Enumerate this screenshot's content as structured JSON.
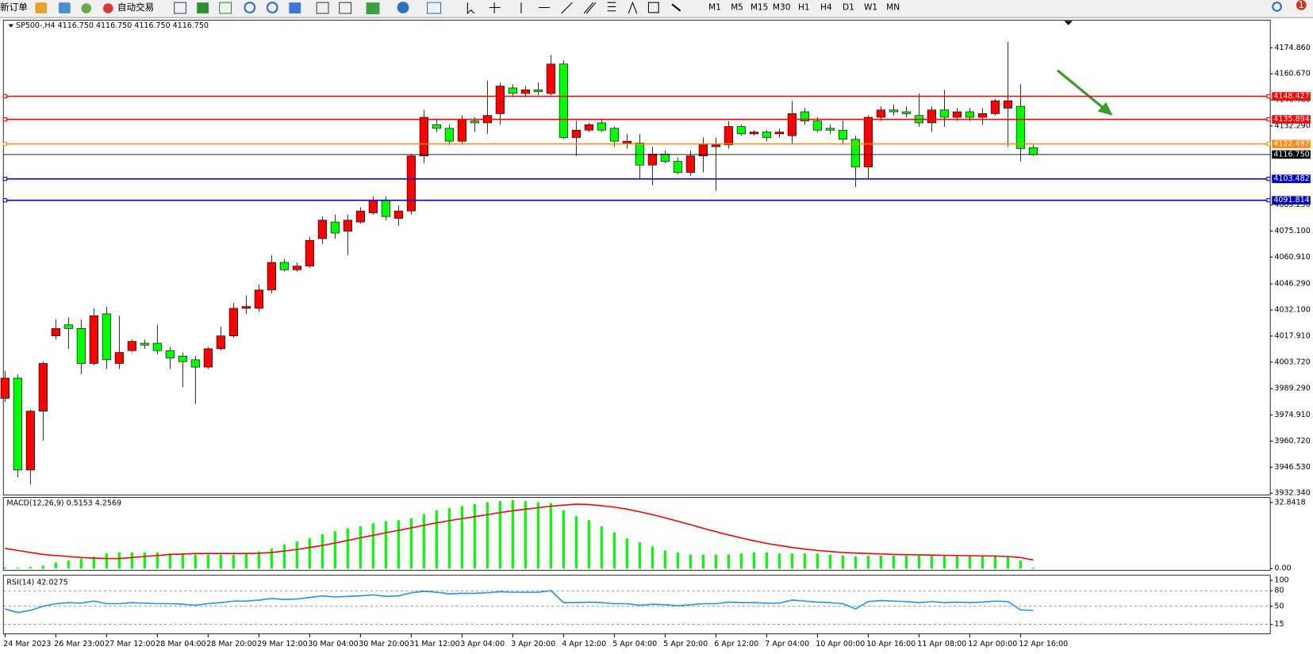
{
  "toolbar": {
    "new_order": "新订单",
    "auto_trade": "自动交易",
    "timeframes": [
      "M1",
      "M5",
      "M15",
      "M30",
      "H1",
      "H4",
      "D1",
      "W1",
      "MN"
    ],
    "notifications": "1"
  },
  "chart_data": [
    {
      "type": "candlestick",
      "title": "SP500-,H4 4116.750 4116.750 4116.750 4116.750",
      "up_color": "#ff0000",
      "down_color": "#00ff00",
      "categories": [
        "24 Mar 2023",
        null,
        null,
        null,
        "26 Mar 23:00",
        null,
        null,
        null,
        "27 Mar 12:00",
        null,
        null,
        null,
        "28 Mar 04:00",
        null,
        null,
        null,
        "28 Mar 20:00",
        null,
        null,
        null,
        "29 Mar 12:00",
        null,
        null,
        null,
        "30 Mar 04:00",
        null,
        null,
        null,
        "30 Mar 20:00",
        null,
        null,
        null,
        "31 Mar 12:00",
        null,
        null,
        null,
        "3 Apr 04:00",
        null,
        null,
        null,
        "3 Apr 20:00",
        null,
        null,
        null,
        "4 Apr 12:00",
        null,
        null,
        null,
        "5 Apr 04:00",
        null,
        null,
        null,
        "5 Apr 20:00",
        null,
        null,
        null,
        "6 Apr 12:00",
        null,
        null,
        null,
        "7 Apr 04:00",
        null,
        null,
        null,
        "10 Apr 00:00",
        null,
        null,
        null,
        "10 Apr 16:00",
        null,
        null,
        null,
        "11 Apr 08:00",
        null,
        null,
        null,
        "12 Apr 00:00",
        null,
        null,
        null,
        "12 Apr 16:00",
        null
      ],
      "open": [
        3984,
        3995,
        3945,
        3977,
        4018,
        4024,
        4022,
        4003,
        4030,
        4003,
        4010,
        4014,
        4014,
        4010,
        4007,
        4005,
        4001,
        4011,
        4018,
        4033,
        4033,
        4043,
        4058,
        4054,
        4056,
        4071,
        4080,
        4075,
        4080,
        4085,
        4092,
        4082,
        4086,
        4116,
        4133,
        4131,
        4124,
        4135,
        4134,
        4139,
        4153,
        4150,
        4152,
        4150,
        4166,
        4126,
        4130,
        4134,
        4131,
        4123,
        4123,
        4111,
        4117,
        4113,
        4107,
        4116,
        4121,
        4122,
        4132,
        4128,
        4129,
        4128,
        4127,
        4140,
        4135,
        4131,
        4130,
        4125,
        4110,
        4137,
        4141,
        4140,
        4138,
        4134,
        4141,
        4137,
        4140,
        4137,
        4139,
        4142,
        4143,
        4120.5
      ],
      "high": [
        3999,
        3997,
        3978,
        4004,
        4027,
        4028,
        4027,
        4033,
        4034,
        4029,
        4016,
        4016,
        4024,
        4012,
        4009,
        4007,
        4012,
        4023,
        4036,
        4040,
        4046,
        4062,
        4060,
        4058,
        4072,
        4083,
        4084,
        4084,
        4088,
        4094,
        4094,
        4089,
        4117,
        4141,
        4136,
        4133,
        4138,
        4137,
        4157,
        4156,
        4155,
        4154,
        4156,
        4171,
        4168,
        4135,
        4134,
        4136,
        4132,
        4128,
        4128,
        4121,
        4119,
        4115,
        4119,
        4126,
        4126,
        4135,
        4133,
        4130,
        4130,
        4131,
        4146,
        4142,
        4137,
        4133,
        4135,
        4127,
        4138,
        4143,
        4144,
        4143,
        4150,
        4143,
        4152,
        4142,
        4142,
        4142,
        4147,
        4178,
        4155,
        4122
      ],
      "low": [
        3982,
        3941,
        3937,
        3961,
        4016,
        4011,
        3997,
        4002,
        4000,
        4000,
        4009,
        4011,
        4008,
        4000,
        3990,
        3981,
        4000,
        4010,
        4017,
        4030,
        4031,
        4041,
        4053,
        4053,
        4055,
        4068,
        4071,
        4062,
        4079,
        4084,
        4081,
        4078,
        4084,
        4112,
        4129,
        4122,
        4123,
        4129,
        4128,
        4133,
        4148,
        4148,
        4149,
        4149,
        4125,
        4116,
        4129,
        4129,
        4121,
        4120,
        4103,
        4100,
        4112,
        4106,
        4105,
        4107,
        4097,
        4120,
        4127,
        4127,
        4124,
        4126,
        4122,
        4133,
        4129,
        4128,
        4122,
        4099,
        4103,
        4135,
        4138,
        4137,
        4132,
        4129,
        4132,
        4135,
        4135,
        4133,
        4138,
        4121,
        4113,
        4116
      ],
      "close": [
        3995,
        3945,
        3977,
        4003,
        4022,
        4022,
        4003,
        4029,
        4005,
        4009,
        4015,
        4013,
        4010,
        4006,
        4004,
        4001,
        4011,
        4018,
        4033,
        4034,
        4043,
        4058,
        4054,
        4056,
        4070,
        4081,
        4074,
        4081,
        4086,
        4092,
        4083,
        4086,
        4116,
        4137,
        4131,
        4124,
        4136,
        4134,
        4138,
        4154,
        4150,
        4152,
        4151,
        4166,
        4126,
        4130,
        4133,
        4130,
        4124,
        4124,
        4111,
        4117,
        4113,
        4107,
        4116,
        4122,
        4122,
        4132,
        4128,
        4129,
        4126,
        4129,
        4139,
        4135,
        4130,
        4130,
        4125,
        4110,
        4137,
        4141,
        4140,
        4139,
        4134,
        4141,
        4137,
        4140,
        4137,
        4139,
        4146,
        4146,
        4120,
        4116.75
      ],
      "ylim": [
        3931.43,
        4189.93
      ],
      "yticks": [
        {
          "value": 4174.86,
          "label": "4174.860"
        },
        {
          "value": 4160.67,
          "label": "4160.670"
        },
        {
          "value": 4146.48,
          "label": "4146.480"
        },
        {
          "value": 4132.29,
          "label": "4132.290"
        },
        {
          "value": 4089.25,
          "label": "4089.250"
        },
        {
          "value": 4075.1,
          "label": "4075.100"
        },
        {
          "value": 4060.91,
          "label": "4060.910"
        },
        {
          "value": 4046.29,
          "label": "4046.290"
        },
        {
          "value": 4032.1,
          "label": "4032.100"
        },
        {
          "value": 4017.91,
          "label": "4017.910"
        },
        {
          "value": 4003.72,
          "label": "4003.720"
        },
        {
          "value": 3989.29,
          "label": "3989.290"
        },
        {
          "value": 3974.91,
          "label": "3974.910"
        },
        {
          "value": 3960.72,
          "label": "3960.720"
        },
        {
          "value": 3946.53,
          "label": "3946.530"
        },
        {
          "value": 3932.34,
          "label": "3932.340"
        }
      ],
      "levels": [
        {
          "value": 4148.427,
          "label": "4148.427",
          "color": "#ff0000"
        },
        {
          "value": 4135.894,
          "label": "4135.894",
          "color": "#ff0000"
        },
        {
          "value": 4122.497,
          "label": "4122.497",
          "color": "#ff8c1a"
        },
        {
          "value": 4116.75,
          "label": "4116.750",
          "color": "#000000"
        },
        {
          "value": 4103.482,
          "label": "4103.482",
          "color": "#0000cd"
        },
        {
          "value": 4091.814,
          "label": "4091.814",
          "color": "#0000cd"
        }
      ]
    },
    {
      "type": "macd",
      "title": "MACD(12,26,9) 0.5153 4.2569",
      "color": "#00ff00",
      "signal_color": "#ff0000",
      "values": [
        0.5,
        0.5,
        0.8,
        1.5,
        3,
        4,
        5,
        6,
        7.5,
        8,
        8,
        8,
        8,
        7.5,
        7.5,
        7,
        7,
        7,
        7,
        7.5,
        8.5,
        10,
        12,
        13.5,
        15,
        17,
        18.5,
        20,
        21,
        22.5,
        23.5,
        24,
        25,
        27,
        29,
        30,
        31,
        32,
        33,
        33.5,
        34,
        33.5,
        33,
        32.5,
        29,
        26,
        24,
        21,
        18,
        15,
        13,
        11,
        9,
        8,
        7,
        7,
        7,
        7,
        7.5,
        8,
        8,
        7.5,
        7.5,
        7.5,
        7.5,
        7,
        6.5,
        6,
        6.5,
        6.5,
        6.5,
        6.5,
        6.5,
        6.5,
        6.5,
        6.5,
        6.5,
        6.5,
        6.5,
        6,
        4,
        0.5153
      ],
      "signal": [
        10,
        9,
        8,
        7,
        6.5,
        6,
        5.5,
        5.2,
        5,
        5,
        5.5,
        6,
        6.5,
        7,
        7.2,
        7.5,
        7.5,
        7.5,
        7.5,
        7.5,
        7.6,
        8,
        8.7,
        9.5,
        10.5,
        11.5,
        12.7,
        14,
        15.3,
        16.5,
        17.8,
        19,
        20.2,
        21.5,
        22.7,
        23.8,
        24.8,
        25.8,
        26.8,
        27.8,
        28.7,
        29.5,
        30.2,
        31,
        31.5,
        32,
        31.8,
        31.2,
        30.5,
        29.5,
        28.2,
        26.8,
        25.2,
        23.5,
        21.8,
        20,
        18.3,
        16.7,
        15.2,
        13.8,
        12.5,
        11.5,
        10.5,
        9.7,
        9,
        8.5,
        8,
        7.7,
        7.5,
        7.3,
        7,
        6.9,
        6.8,
        6.7,
        6.6,
        6.5,
        6.4,
        6.3,
        6.2,
        6,
        5.5,
        4.2569
      ],
      "ylim": [
        0,
        32.8418
      ],
      "yticks": [
        {
          "value": 32.8418,
          "label": "32.8418"
        },
        {
          "value": 0,
          "label": "0.00"
        }
      ]
    },
    {
      "type": "line",
      "title": "RSI(14) 42.0275",
      "color": "#1e90ff",
      "values": [
        45,
        38,
        42,
        50,
        55,
        57,
        56,
        60,
        55,
        55,
        57,
        56,
        55,
        55,
        54,
        52,
        55,
        57,
        60,
        60,
        62,
        65,
        63,
        64,
        67,
        70,
        68,
        69,
        70,
        72,
        69,
        70,
        76,
        79,
        77,
        74,
        75,
        75,
        76,
        78,
        77,
        77,
        77,
        80,
        57,
        57,
        58,
        57,
        55,
        55,
        52,
        54,
        53,
        51,
        53,
        55,
        55,
        58,
        57,
        57,
        56,
        56,
        62,
        60,
        58,
        57,
        55,
        45,
        59,
        61,
        60,
        59,
        57,
        59,
        57,
        58,
        57,
        58,
        60,
        59,
        43,
        42.0275
      ],
      "ylim": [
        0,
        100
      ],
      "yticks": [
        100,
        80,
        50,
        15
      ],
      "grid": true
    }
  ]
}
